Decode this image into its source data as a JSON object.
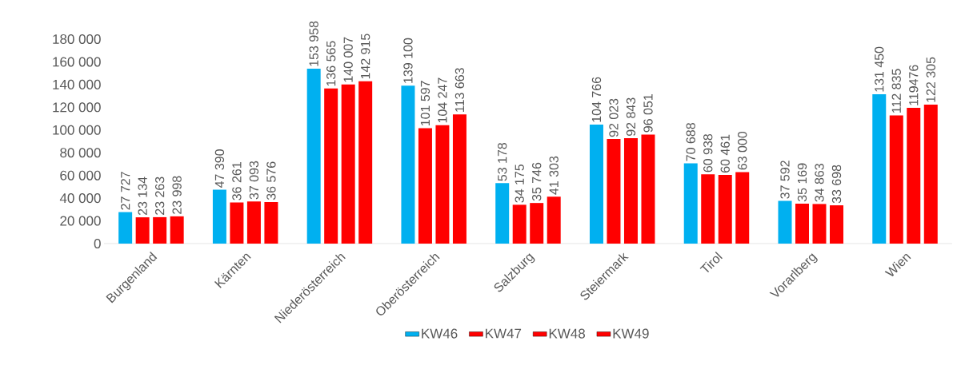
{
  "chart_data": {
    "type": "bar",
    "categories": [
      "Burgenland",
      "Kärnten",
      "Niederösterreich",
      "Oberösterreich",
      "Salzburg",
      "Steiermark",
      "Tirol",
      "Vorarlberg",
      "Wien"
    ],
    "series": [
      {
        "name": "KW46",
        "color": "#00b0f0",
        "values": [
          27727,
          47390,
          153958,
          139100,
          53178,
          104766,
          70688,
          37592,
          131450
        ],
        "value_labels": [
          "27 727",
          "47 390",
          "153 958",
          "139 100",
          "53 178",
          "104 766",
          "70 688",
          "37 592",
          "131 450"
        ]
      },
      {
        "name": "KW47",
        "color": "#ff0000",
        "values": [
          23134,
          36261,
          136565,
          101597,
          34175,
          92023,
          60938,
          35169,
          112835
        ],
        "value_labels": [
          "23 134",
          "36 261",
          "136 565",
          "101 597",
          "34 175",
          "92 023",
          "60 938",
          "35 169",
          "112 835"
        ]
      },
      {
        "name": "KW48",
        "color": "#ff0000",
        "values": [
          23263,
          37093,
          140007,
          104247,
          35746,
          92843,
          60461,
          34863,
          119476
        ],
        "value_labels": [
          "23 263",
          "37 093",
          "140 007",
          "104 247",
          "35 746",
          "92 843",
          "60 461",
          "34 863",
          "119476"
        ]
      },
      {
        "name": "KW49",
        "color": "#ff0000",
        "values": [
          23998,
          36576,
          142915,
          113663,
          41303,
          96051,
          63000,
          33698,
          122305
        ],
        "value_labels": [
          "23 998",
          "36 576",
          "142 915",
          "113 663",
          "41 303",
          "96 051",
          "63 000",
          "33 698",
          "122 305"
        ]
      }
    ],
    "ylim": [
      0,
      180000
    ],
    "yticks": [
      0,
      {
        "value": 20000,
        "label": "20 000"
      },
      {
        "value": 40000,
        "label": "40 000"
      },
      {
        "value": 60000,
        "label": "60 000"
      },
      {
        "value": 80000,
        "label": "80 000"
      },
      {
        "value": 100000,
        "label": "100 000"
      },
      {
        "value": 120000,
        "label": "120 000"
      },
      {
        "value": 140000,
        "label": "140 000"
      },
      {
        "value": 160000,
        "label": "160 000"
      },
      {
        "value": 180000,
        "label": "180 000"
      }
    ],
    "grid": false,
    "legend": "bottom"
  }
}
